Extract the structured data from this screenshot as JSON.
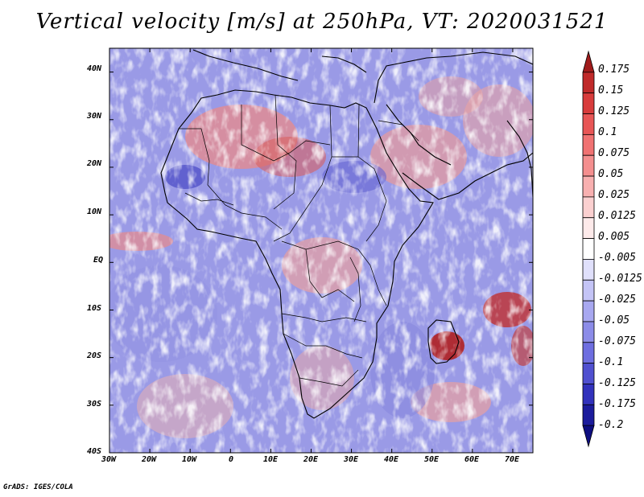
{
  "title": "Vertical velocity [m/s] at 250hPa, VT: 2020031521",
  "credit": "GrADS: IGES/COLA",
  "map": {
    "lon_labels": [
      "30W",
      "20W",
      "10W",
      "0",
      "10E",
      "20E",
      "30E",
      "40E",
      "50E",
      "60E",
      "70E"
    ],
    "lat_labels": [
      "40N",
      "30N",
      "20N",
      "10N",
      "EQ",
      "10S",
      "20S",
      "30S",
      "40S"
    ],
    "lon_range": [
      -30,
      75
    ],
    "lat_range": [
      -40,
      45
    ]
  },
  "colorbar": {
    "levels": [
      "0.175",
      "0.15",
      "0.125",
      "0.1",
      "0.075",
      "0.05",
      "0.025",
      "0.0125",
      "0.005",
      "-0.005",
      "-0.0125",
      "-0.025",
      "-0.05",
      "-0.075",
      "-0.1",
      "-0.125",
      "-0.175",
      "-0.2"
    ],
    "colors": [
      "#a01b1b",
      "#c02a2a",
      "#d83c3c",
      "#e85656",
      "#f07272",
      "#f48f8f",
      "#f8b0b0",
      "#fbd0d0",
      "#fdeaea",
      "#ffffff",
      "#e0e0fb",
      "#c4c4f6",
      "#a8a8f0",
      "#8c8ce8",
      "#6e6ee0",
      "#5050d0",
      "#3232bc",
      "#1c1c9c",
      "#0e0e80"
    ]
  }
}
